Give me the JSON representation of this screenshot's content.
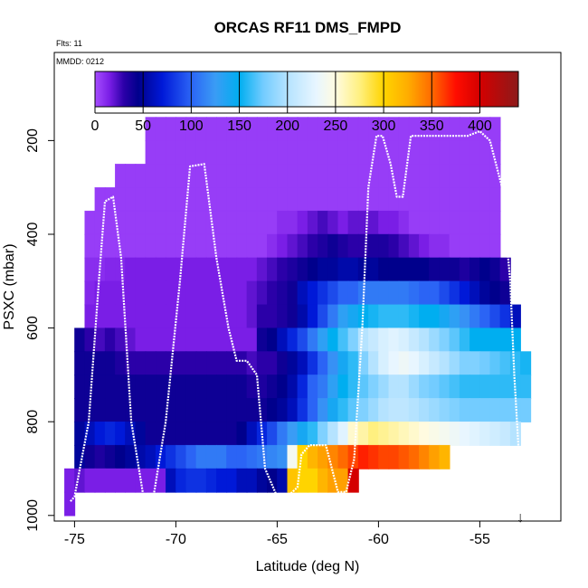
{
  "chart_data": {
    "type": "heatmap",
    "title": "ORCAS RF11 DMS_FMPD",
    "annotations": {
      "flights": "Flts: 11",
      "date": "MMDD: 0212"
    },
    "xlabel": "Latitude (deg N)",
    "ylabel": "PSXC (mbar)",
    "xlim": [
      -76.0,
      -51.0
    ],
    "ylim": [
      1012,
      12
    ],
    "x_ticks": [
      -75,
      -70,
      -65,
      -60,
      -55
    ],
    "x_tick_labels": [
      "-75",
      "-70",
      "-65",
      "-60",
      "-55"
    ],
    "y_ticks": [
      200,
      400,
      600,
      800,
      1000
    ],
    "y_tick_labels": [
      "200",
      "400",
      "600",
      "800",
      "1000"
    ],
    "colorbar": {
      "range": [
        0,
        440
      ],
      "ticks": [
        0,
        50,
        100,
        150,
        200,
        250,
        300,
        350,
        400
      ],
      "tick_labels": [
        "0",
        "50",
        "100",
        "150",
        "200",
        "250",
        "300",
        "350",
        "400"
      ],
      "stops": [
        {
          "v": 0,
          "c": "#a64dff"
        },
        {
          "v": 15,
          "c": "#7a1ee6"
        },
        {
          "v": 30,
          "c": "#2b00a8"
        },
        {
          "v": 45,
          "c": "#00008c"
        },
        {
          "v": 70,
          "c": "#0019d8"
        },
        {
          "v": 100,
          "c": "#2b64f5"
        },
        {
          "v": 125,
          "c": "#3a9cf5"
        },
        {
          "v": 150,
          "c": "#00aef0"
        },
        {
          "v": 175,
          "c": "#73ccff"
        },
        {
          "v": 200,
          "c": "#b5e3ff"
        },
        {
          "v": 230,
          "c": "#e8f6ff"
        },
        {
          "v": 250,
          "c": "#fffbe0"
        },
        {
          "v": 275,
          "c": "#fff080"
        },
        {
          "v": 300,
          "c": "#ffd400"
        },
        {
          "v": 325,
          "c": "#ffad00"
        },
        {
          "v": 350,
          "c": "#ff6a00"
        },
        {
          "v": 375,
          "c": "#ff0d00"
        },
        {
          "v": 400,
          "c": "#d40000"
        },
        {
          "v": 440,
          "c": "#8c1a1a"
        }
      ]
    },
    "lat_bin_width": 0.5,
    "pressure_bin_height": 50,
    "bins": [
      {
        "p": 175,
        "lat": [
          -71.5,
          -54.0
        ],
        "values": [
          5,
          5,
          5,
          5,
          5,
          5,
          5,
          5,
          5,
          5,
          5,
          5,
          5,
          5,
          5,
          5,
          5,
          5,
          5,
          5,
          5,
          5,
          5,
          5,
          5,
          5,
          5,
          5,
          5,
          5,
          5,
          5,
          5,
          5,
          5
        ]
      },
      {
        "p": 225,
        "lat": [
          -71.5,
          -54.0
        ],
        "values": [
          5,
          5,
          5,
          5,
          5,
          5,
          5,
          5,
          5,
          5,
          5,
          5,
          5,
          5,
          5,
          5,
          5,
          5,
          5,
          5,
          5,
          5,
          5,
          5,
          5,
          5,
          5,
          5,
          5,
          5,
          5,
          5,
          5,
          5,
          5
        ]
      },
      {
        "p": 275,
        "lat": [
          -73.0,
          -54.0
        ],
        "values": [
          5,
          5,
          5,
          5,
          5,
          5,
          5,
          5,
          5,
          5,
          5,
          5,
          5,
          5,
          5,
          5,
          5,
          5,
          5,
          5,
          5,
          5,
          5,
          5,
          5,
          5,
          5,
          5,
          5,
          5,
          5,
          5,
          5,
          5,
          5,
          5,
          5,
          5
        ]
      },
      {
        "p": 325,
        "lat": [
          -74.0,
          -54.0
        ],
        "values": [
          5,
          5,
          5,
          5,
          5,
          5,
          5,
          5,
          5,
          5,
          5,
          5,
          5,
          5,
          5,
          5,
          5,
          5,
          5,
          5,
          5,
          5,
          5,
          5,
          5,
          5,
          5,
          5,
          5,
          5,
          5,
          5,
          5,
          5,
          5,
          5,
          5,
          5,
          5,
          5
        ]
      },
      {
        "p": 375,
        "lat": [
          -74.5,
          -54.0
        ],
        "values": [
          5,
          5,
          5,
          5,
          5,
          5,
          5,
          5,
          5,
          5,
          5,
          5,
          5,
          5,
          5,
          5,
          5,
          5,
          5,
          10,
          10,
          15,
          20,
          25,
          20,
          15,
          20,
          20,
          20,
          15,
          15,
          10,
          5,
          5,
          5,
          5,
          5,
          5,
          5,
          5,
          5
        ]
      },
      {
        "p": 425,
        "lat": [
          -74.5,
          -54.0
        ],
        "values": [
          5,
          5,
          5,
          5,
          5,
          5,
          5,
          5,
          5,
          5,
          5,
          5,
          5,
          5,
          5,
          5,
          5,
          5,
          10,
          15,
          20,
          25,
          30,
          35,
          40,
          35,
          30,
          30,
          35,
          35,
          30,
          25,
          20,
          15,
          10,
          10,
          5,
          5,
          5,
          5,
          5
        ]
      },
      {
        "p": 475,
        "lat": [
          -74.5,
          -53.5
        ],
        "values": [
          10,
          10,
          12,
          12,
          15,
          15,
          15,
          15,
          15,
          15,
          15,
          15,
          15,
          15,
          15,
          15,
          15,
          20,
          25,
          30,
          35,
          40,
          45,
          50,
          50,
          55,
          55,
          50,
          50,
          45,
          45,
          45,
          45,
          45,
          40,
          40,
          40,
          35,
          40,
          45,
          40,
          30
        ]
      },
      {
        "p": 525,
        "lat": [
          -74.5,
          -53.5
        ],
        "values": [
          12,
          15,
          15,
          15,
          15,
          15,
          15,
          15,
          15,
          15,
          15,
          15,
          15,
          15,
          15,
          15,
          20,
          25,
          30,
          35,
          40,
          60,
          70,
          80,
          90,
          100,
          100,
          110,
          110,
          110,
          110,
          110,
          105,
          100,
          100,
          90,
          80,
          70,
          60,
          50,
          45,
          40
        ]
      },
      {
        "p": 575,
        "lat": [
          -74.5,
          -53.0
        ],
        "values": [
          15,
          15,
          15,
          15,
          15,
          15,
          15,
          15,
          15,
          15,
          15,
          15,
          15,
          15,
          15,
          15,
          20,
          30,
          30,
          35,
          40,
          55,
          70,
          90,
          110,
          130,
          140,
          150,
          155,
          160,
          160,
          160,
          155,
          150,
          150,
          140,
          130,
          120,
          110,
          100,
          90,
          80,
          60
        ]
      },
      {
        "p": 625,
        "lat": [
          -75.0,
          -53.0
        ],
        "values": [
          40,
          30,
          25,
          30,
          25,
          20,
          15,
          15,
          15,
          15,
          15,
          15,
          15,
          15,
          15,
          15,
          15,
          15,
          40,
          45,
          60,
          75,
          90,
          110,
          130,
          150,
          165,
          180,
          200,
          210,
          220,
          225,
          220,
          210,
          200,
          190,
          180,
          170,
          160,
          150,
          150,
          150,
          150,
          150
        ]
      },
      {
        "p": 675,
        "lat": [
          -75.0,
          -52.5
        ],
        "values": [
          40,
          40,
          40,
          40,
          35,
          30,
          30,
          30,
          30,
          30,
          30,
          30,
          30,
          30,
          30,
          30,
          30,
          25,
          30,
          30,
          40,
          50,
          60,
          80,
          100,
          120,
          140,
          160,
          180,
          200,
          220,
          230,
          235,
          230,
          220,
          210,
          200,
          190,
          180,
          180,
          175,
          170,
          165,
          160,
          155
        ]
      },
      {
        "p": 725,
        "lat": [
          -75.0,
          -52.5
        ],
        "values": [
          40,
          40,
          40,
          40,
          40,
          40,
          40,
          40,
          40,
          40,
          40,
          40,
          40,
          40,
          40,
          40,
          40,
          35,
          35,
          40,
          45,
          55,
          75,
          100,
          110,
          130,
          150,
          160,
          170,
          180,
          190,
          200,
          200,
          190,
          180,
          175,
          170,
          165,
          160,
          160,
          160,
          160,
          160,
          160,
          160
        ]
      },
      {
        "p": 775,
        "lat": [
          -75.0,
          -52.5
        ],
        "values": [
          40,
          40,
          40,
          40,
          40,
          40,
          40,
          40,
          40,
          40,
          40,
          40,
          40,
          40,
          40,
          40,
          40,
          40,
          40,
          45,
          50,
          60,
          80,
          100,
          120,
          140,
          160,
          170,
          180,
          190,
          200,
          205,
          205,
          200,
          195,
          190,
          185,
          180,
          175,
          175,
          175,
          175,
          175,
          175,
          175
        ]
      },
      {
        "p": 825,
        "lat": [
          -75.0,
          -53.0
        ],
        "values": [
          50,
          60,
          70,
          75,
          70,
          60,
          50,
          40,
          40,
          40,
          40,
          40,
          40,
          40,
          40,
          40,
          45,
          60,
          75,
          90,
          110,
          125,
          140,
          160,
          180,
          200,
          225,
          255,
          265,
          275,
          270,
          265,
          260,
          255,
          250,
          245,
          240,
          235,
          230,
          225,
          220,
          215,
          210,
          200
        ]
      },
      {
        "p": 875,
        "lat": [
          -75.0,
          -57.0
        ],
        "values": [
          50,
          40,
          35,
          40,
          45,
          50,
          55,
          60,
          70,
          80,
          90,
          100,
          110,
          110,
          110,
          100,
          100,
          105,
          110,
          115,
          120,
          240,
          300,
          320,
          330,
          340,
          350,
          360,
          370,
          365,
          360,
          360,
          355,
          350,
          340,
          330,
          320
        ]
      },
      {
        "p": 925,
        "lat": [
          -75.5,
          -61.0
        ],
        "values": [
          15,
          20,
          15,
          15,
          15,
          15,
          15,
          15,
          15,
          15,
          60,
          75,
          80,
          80,
          75,
          70,
          70,
          60,
          60,
          50,
          45,
          55,
          310,
          300,
          300,
          320,
          330,
          330,
          400
        ]
      },
      {
        "p": 975,
        "lat": [
          -75.5,
          -75.0
        ],
        "values": [
          15
        ]
      }
    ],
    "flight_track": {
      "lat": [
        -75.2,
        -75.0,
        -74.3,
        -73.8,
        -73.5,
        -73.1,
        -72.7,
        -72.2,
        -71.6,
        -71.1,
        -70.5,
        -69.8,
        -69.3,
        -68.6,
        -68.0,
        -67.4,
        -67.0,
        -66.5,
        -66.0,
        -65.6,
        -65.0,
        -64.5,
        -64.0,
        -63.8,
        -63.4,
        -62.6,
        -62.0,
        -61.6,
        -61.2,
        -60.8,
        -60.5,
        -60.1,
        -59.8,
        -59.4,
        -59.1,
        -58.8,
        -58.4,
        -58.0,
        -57.6,
        -57.3,
        -57.0,
        -56.4,
        -55.6,
        -55.0,
        -54.5,
        -53.9,
        -53.5,
        -53.3,
        -53.1,
        -53.0,
        -53.0
      ],
      "p": [
        970,
        960,
        800,
        500,
        330,
        320,
        450,
        800,
        960,
        958,
        800,
        500,
        255,
        250,
        450,
        600,
        670,
        670,
        700,
        900,
        960,
        960,
        940,
        870,
        850,
        850,
        950,
        950,
        880,
        600,
        300,
        190,
        190,
        250,
        320,
        320,
        190,
        190,
        190,
        190,
        190,
        190,
        190,
        180,
        200,
        300,
        500,
        700,
        850,
        950,
        960
      ]
    },
    "marker": {
      "lat": -53.0,
      "symbol": "↓"
    }
  }
}
